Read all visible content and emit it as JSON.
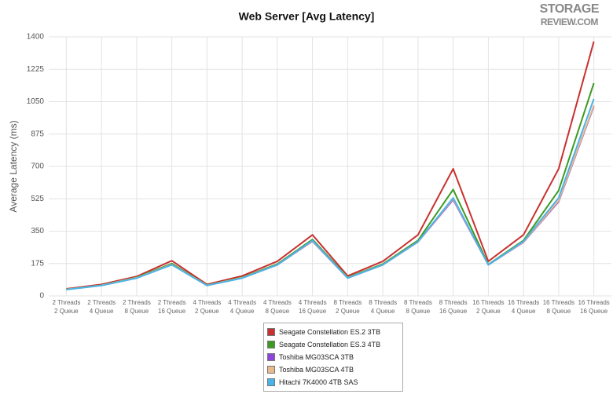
{
  "logo": {
    "line1": "STORAGE",
    "line2": "REVIEW.COM"
  },
  "chart_data": {
    "type": "line",
    "title": "Web Server [Avg Latency]",
    "y_label": "Average Latency (ms)",
    "categories": [
      "2 Threads\n2 Queue",
      "2 Threads\n4 Queue",
      "2 Threads\n8 Queue",
      "2 Threads\n16 Queue",
      "4 Threads\n2 Queue",
      "4 Threads\n4 Queue",
      "4 Threads\n8 Queue",
      "4 Threads\n16 Queue",
      "8 Threads\n2 Queue",
      "8 Threads\n4 Queue",
      "8 Threads\n8 Queue",
      "8 Threads\n16 Queue",
      "16 Threads\n2 Queue",
      "16 Threads\n4 Queue",
      "16 Threads\n8 Queue",
      "16 Threads\n16 Queue"
    ],
    "series": [
      {
        "name": "Seagate Constellation ES.2 3TB",
        "color": "#c8312f",
        "values": [
          38,
          62,
          105,
          190,
          62,
          108,
          187,
          330,
          108,
          187,
          330,
          687,
          187,
          330,
          687,
          1375
        ]
      },
      {
        "name": "Seagate Constellation ES.3 4TB",
        "color": "#3d9a23",
        "values": [
          36,
          58,
          100,
          175,
          58,
          100,
          172,
          305,
          100,
          172,
          300,
          575,
          170,
          300,
          570,
          1150
        ]
      },
      {
        "name": "Toshiba MG03SCA 3TB",
        "color": "#8e44d8",
        "values": [
          35,
          57,
          97,
          170,
          57,
          97,
          168,
          295,
          97,
          168,
          292,
          520,
          168,
          290,
          510,
          1025
        ]
      },
      {
        "name": "Toshiba MG03SCA 4TB",
        "color": "#e8b98a",
        "values": [
          35,
          57,
          98,
          170,
          57,
          98,
          168,
          297,
          98,
          168,
          293,
          525,
          168,
          292,
          515,
          1030
        ]
      },
      {
        "name": "Hitachi 7K4000 4TB SAS",
        "color": "#4ab3e8",
        "values": [
          34,
          56,
          96,
          168,
          56,
          96,
          168,
          300,
          96,
          168,
          293,
          530,
          168,
          295,
          530,
          1065
        ]
      }
    ],
    "ylim": [
      0,
      1400
    ],
    "yticks": [
      0,
      175,
      350,
      525,
      700,
      875,
      1050,
      1225,
      1400
    ],
    "grid": true
  }
}
